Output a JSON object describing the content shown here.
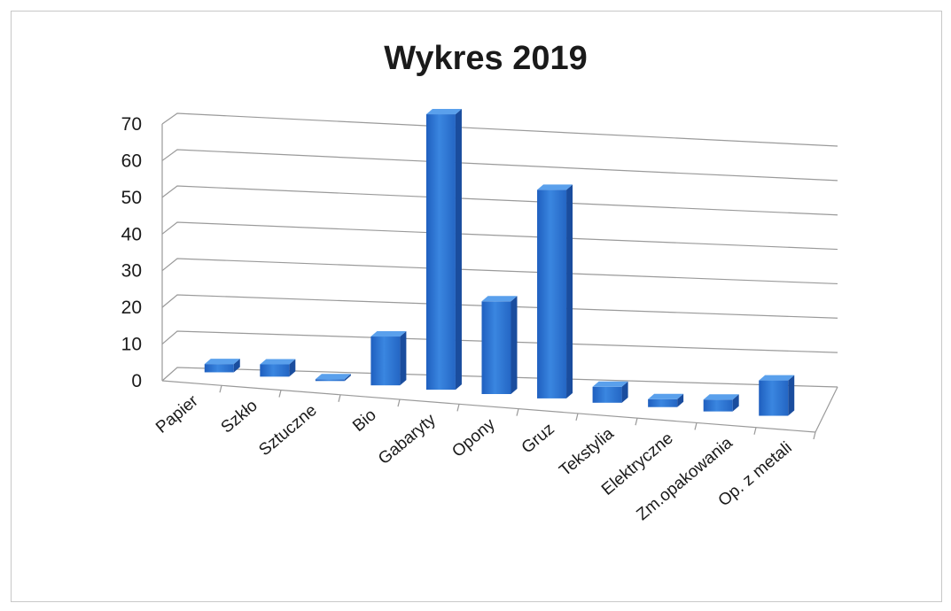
{
  "chart_data": {
    "type": "bar",
    "title": "Wykres 2019",
    "xlabel": "",
    "ylabel": "",
    "ylim": [
      0,
      70
    ],
    "yticks": [
      0,
      10,
      20,
      30,
      40,
      50,
      60,
      70
    ],
    "grid": true,
    "legend": "none",
    "bar_color": "#2e75d2",
    "categories": [
      "Papier",
      "Szkło",
      "Sztuczne",
      "Bio",
      "Gabaryty",
      "Opony",
      "Gruz",
      "Tekstylia",
      "Elektryczne",
      "Zm.opakowania",
      "Op. z metali"
    ],
    "values": [
      2,
      3,
      0,
      12,
      68,
      23,
      52,
      4,
      2,
      3,
      9
    ]
  }
}
